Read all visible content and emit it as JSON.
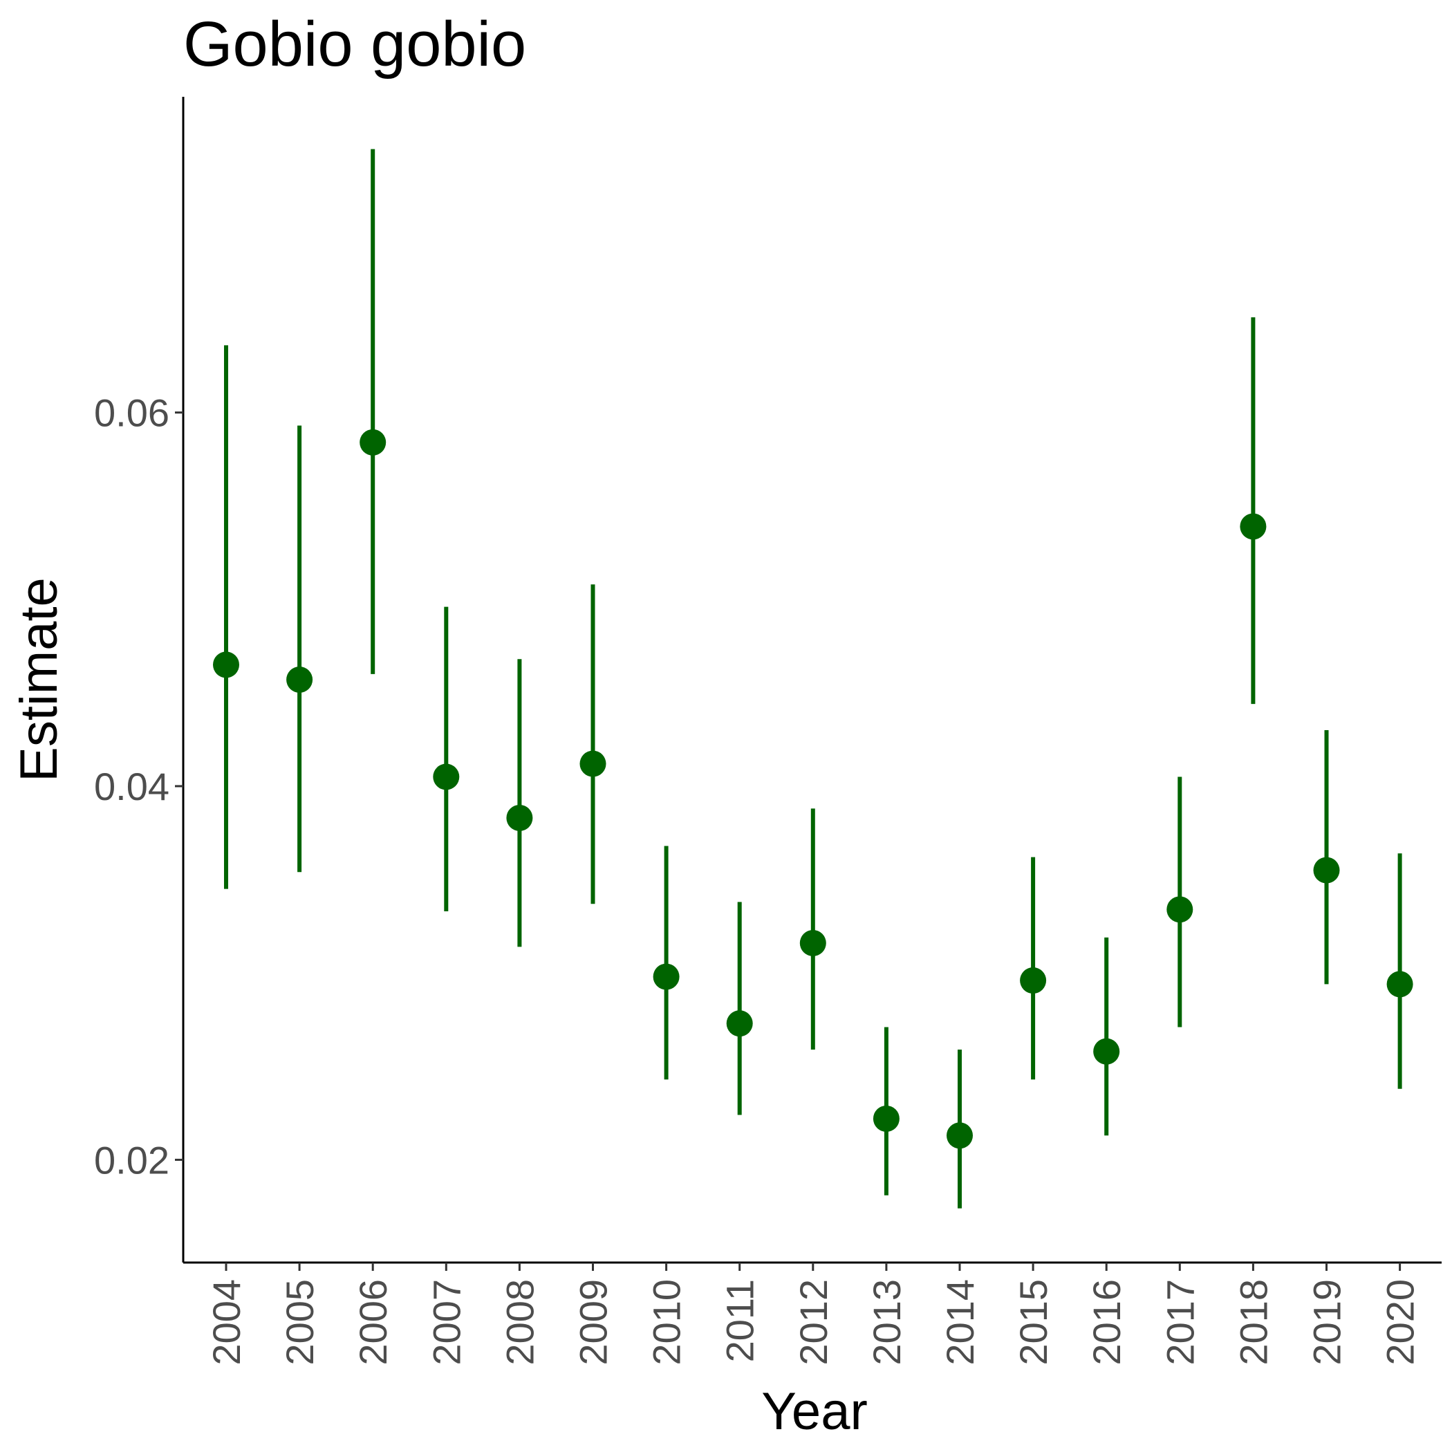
{
  "chart_data": {
    "type": "scatter",
    "title": "Gobio gobio",
    "xlabel": "Year",
    "ylabel": "Estimate",
    "categories": [
      "2004",
      "2005",
      "2006",
      "2007",
      "2008",
      "2009",
      "2010",
      "2011",
      "2012",
      "2013",
      "2014",
      "2015",
      "2016",
      "2017",
      "2018",
      "2019",
      "2020"
    ],
    "series": [
      {
        "estimate": [
          0.0465,
          0.0457,
          0.0584,
          0.0405,
          0.0383,
          0.0412,
          0.0298,
          0.0273,
          0.0316,
          0.0222,
          0.0213,
          0.0296,
          0.0258,
          0.0334,
          0.0539,
          0.0355,
          0.0294
        ],
        "lower": [
          0.0345,
          0.0354,
          0.046,
          0.0333,
          0.0314,
          0.0337,
          0.0243,
          0.0224,
          0.0259,
          0.0181,
          0.0174,
          0.0243,
          0.0213,
          0.0271,
          0.0444,
          0.0294,
          0.0238
        ],
        "upper": [
          0.0636,
          0.0593,
          0.0741,
          0.0496,
          0.0468,
          0.0508,
          0.0368,
          0.0338,
          0.0388,
          0.0271,
          0.0259,
          0.0362,
          0.0319,
          0.0405,
          0.0651,
          0.043,
          0.0364
        ]
      }
    ],
    "y_ticks": [
      "0.02",
      "0.04",
      "0.06"
    ],
    "y_tick_values": [
      0.02,
      0.04,
      0.06
    ],
    "ylim": [
      0.0145,
      0.0769
    ],
    "grid": false,
    "legend": "none",
    "color": "#006400"
  }
}
